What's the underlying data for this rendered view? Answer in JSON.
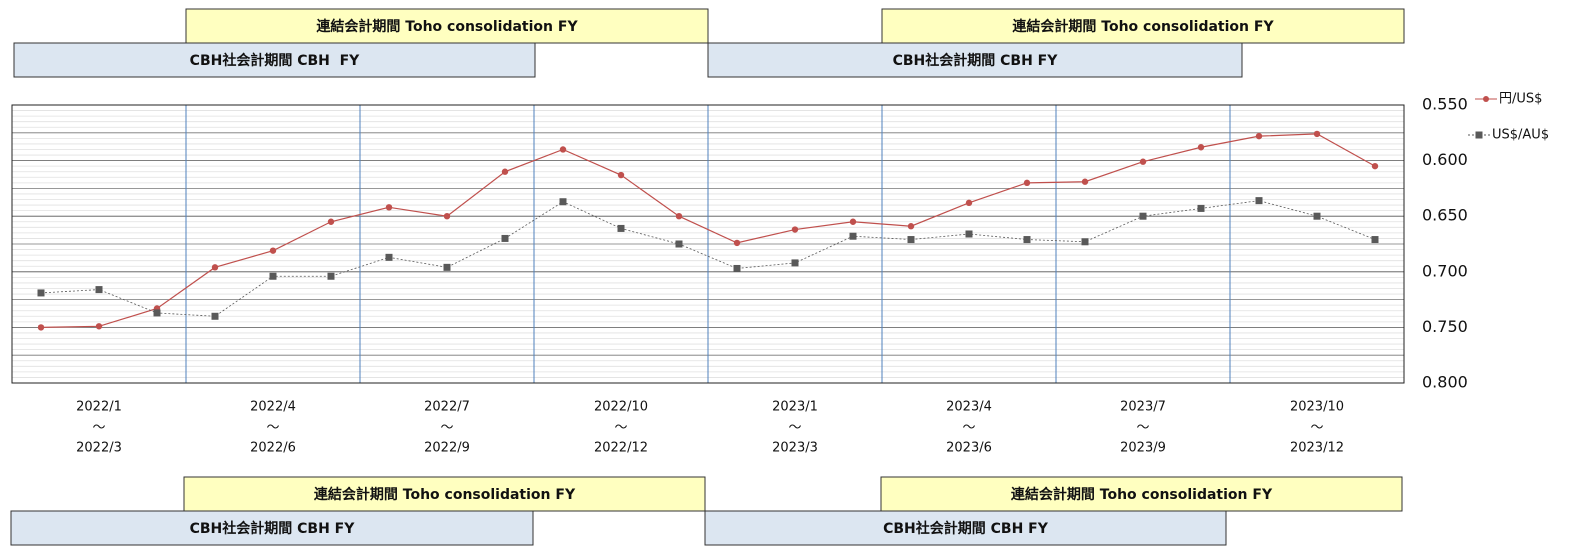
{
  "chart_data": {
    "type": "line",
    "y_reversed": true,
    "ylim": [
      0.55,
      0.8
    ],
    "yticks": [
      {
        "value": 0.55,
        "label": "0.550"
      },
      {
        "value": 0.6,
        "label": "0.600"
      },
      {
        "value": 0.65,
        "label": "0.650"
      },
      {
        "value": 0.7,
        "label": "0.700"
      },
      {
        "value": 0.75,
        "label": "0.750"
      },
      {
        "value": 0.8,
        "label": "0.800"
      }
    ],
    "grid": true,
    "legend": "right",
    "range_separator": "～",
    "periods": [
      {
        "from": "2022/1",
        "to": "2022/3"
      },
      {
        "from": "2022/4",
        "to": "2022/6"
      },
      {
        "from": "2022/7",
        "to": "2022/9"
      },
      {
        "from": "2022/10",
        "to": "2022/12"
      },
      {
        "from": "2023/1",
        "to": "2023/3"
      },
      {
        "from": "2023/4",
        "to": "2023/6"
      },
      {
        "from": "2023/7",
        "to": "2023/9"
      },
      {
        "from": "2023/10",
        "to": "2023/12"
      }
    ],
    "series": [
      {
        "name": "円/US$",
        "color": "#c0504d",
        "marker": "circle",
        "values": [
          0.75,
          0.749,
          0.733,
          0.696,
          0.681,
          0.655,
          0.642,
          0.65,
          0.61,
          0.59,
          0.613,
          0.65,
          0.674,
          0.662,
          0.655,
          0.659,
          0.638,
          0.62,
          0.619,
          0.601,
          0.588,
          0.578,
          0.576,
          0.605
        ]
      },
      {
        "name": "US$/AU$",
        "color": "#595959",
        "marker": "square",
        "values": [
          0.719,
          0.716,
          0.737,
          0.74,
          0.704,
          0.704,
          0.687,
          0.696,
          0.67,
          0.637,
          0.661,
          0.675,
          0.697,
          0.692,
          0.668,
          0.671,
          0.666,
          0.671,
          0.673,
          0.65,
          0.643,
          0.636,
          0.65,
          0.671
        ]
      }
    ]
  },
  "banners": {
    "top": [
      "連結会計期間 Toho consolidation FY",
      "連結会計期間 Toho consolidation FY",
      "CBH社会計期間 CBH  FY",
      "CBH社会計期間 CBH FY"
    ],
    "bottom": [
      "連結会計期間 Toho consolidation FY",
      "連結会計期間 Toho consolidation FY",
      "CBH社会計期間 CBH FY",
      "CBH社会計期間 CBH FY"
    ]
  }
}
